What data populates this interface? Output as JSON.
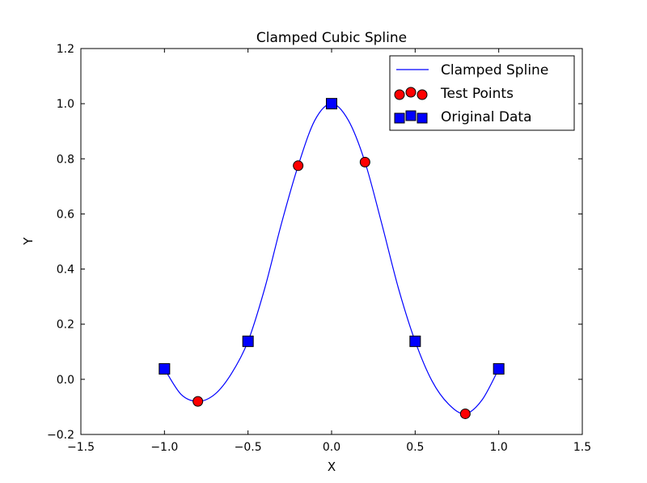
{
  "chart_data": {
    "type": "line",
    "title": "Clamped Cubic Spline",
    "xlabel": "X",
    "ylabel": "Y",
    "xlim": [
      -1.5,
      1.5
    ],
    "ylim": [
      -0.2,
      1.2
    ],
    "xticks": [
      -1.5,
      -1.0,
      -0.5,
      0.0,
      0.5,
      1.0,
      1.5
    ],
    "xtick_labels": [
      "−1.5",
      "−1.0",
      "−0.5",
      "0.0",
      "0.5",
      "1.0",
      "1.5"
    ],
    "yticks": [
      -0.2,
      0.0,
      0.2,
      0.4,
      0.6,
      0.8,
      1.0,
      1.2
    ],
    "ytick_labels": [
      "−0.2",
      "0.0",
      "0.2",
      "0.4",
      "0.6",
      "0.8",
      "1.0",
      "1.2"
    ],
    "grid": false,
    "legend_position": "top-right",
    "series": [
      {
        "name": "Clamped Spline",
        "kind": "line",
        "color": "#0000ff",
        "x": [
          -1.0,
          -0.9,
          -0.8,
          -0.7,
          -0.6,
          -0.5,
          -0.4,
          -0.3,
          -0.2,
          -0.1,
          0.0,
          0.1,
          0.2,
          0.3,
          0.4,
          0.5,
          0.6,
          0.7,
          0.8,
          0.9,
          1.0
        ],
        "y": [
          0.038,
          -0.055,
          -0.08,
          -0.055,
          0.02,
          0.138,
          0.33,
          0.565,
          0.775,
          0.94,
          1.0,
          0.94,
          0.788,
          0.565,
          0.33,
          0.138,
          -0.005,
          -0.09,
          -0.125,
          -0.075,
          0.038
        ]
      },
      {
        "name": "Test Points",
        "kind": "scatter",
        "marker": "circle",
        "color": "#ff0000",
        "x": [
          -0.8,
          -0.2,
          0.2,
          0.8
        ],
        "y": [
          -0.08,
          0.775,
          0.788,
          -0.125
        ]
      },
      {
        "name": "Original Data",
        "kind": "scatter",
        "marker": "square",
        "color": "#0000ff",
        "x": [
          -1.0,
          -0.5,
          0.0,
          0.5,
          1.0
        ],
        "y": [
          0.038,
          0.138,
          1.0,
          0.138,
          0.038
        ]
      }
    ]
  }
}
